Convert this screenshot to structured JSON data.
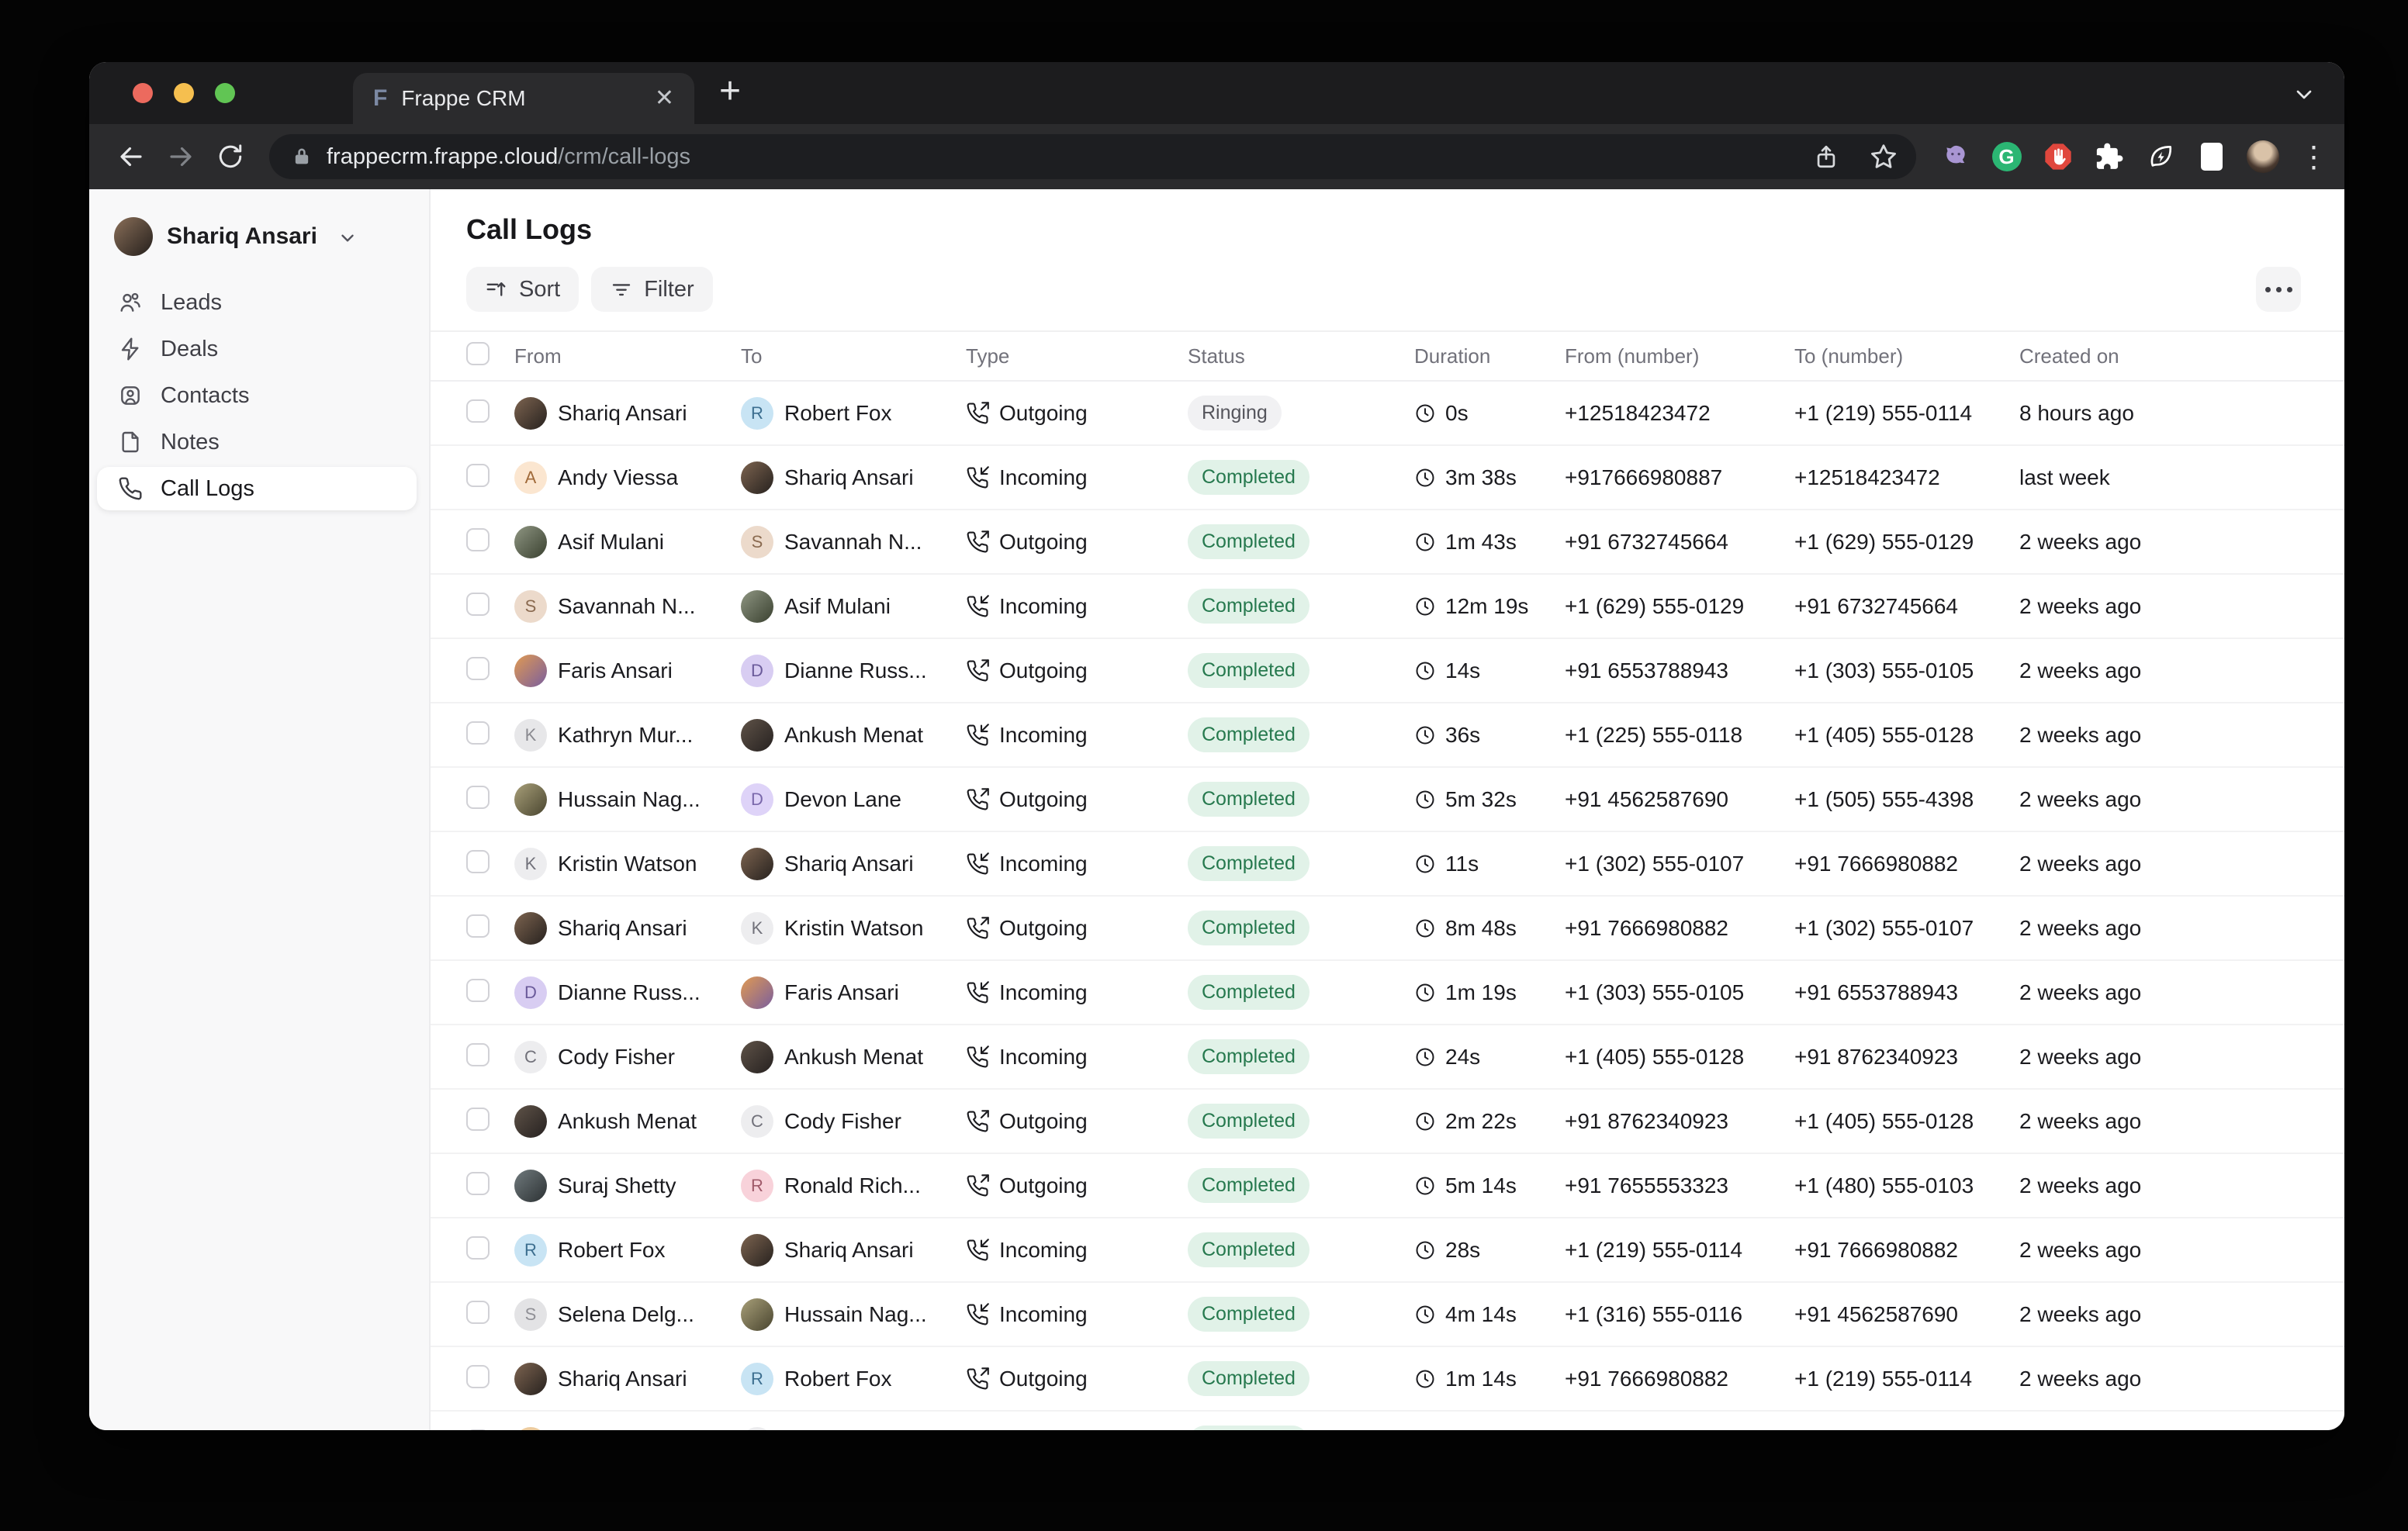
{
  "browser": {
    "tab_title": "Frappe CRM",
    "favicon_letter": "F",
    "close_glyph": "✕",
    "new_tab_glyph": "+",
    "url_domain": "frappecrm.frappe.cloud",
    "url_path": "/crm/call-logs",
    "grammarly_letter": "G",
    "menu_dots_glyph": "⋮",
    "traffic_lights": [
      "#ec6a5e",
      "#f5bf4f",
      "#61c554"
    ],
    "icon_names": [
      "back-arrow-icon",
      "forward-arrow-icon",
      "reload-icon",
      "padlock-icon",
      "share-icon",
      "bookmark-star-icon",
      "octocat-extension-icon",
      "grammarly-extension-icon",
      "adblock-extension-icon",
      "extensions-puzzle-icon",
      "leaf-bolt-extension-icon",
      "side-panel-icon",
      "profile-avatar",
      "menu-dots-icon",
      "tab-strip-chevron-icon"
    ]
  },
  "sidebar": {
    "user": {
      "name": "Shariq Ansari"
    },
    "items": [
      {
        "label": "Leads",
        "icon": "users-icon",
        "active": false
      },
      {
        "label": "Deals",
        "icon": "zap-icon",
        "active": false
      },
      {
        "label": "Contacts",
        "icon": "contact-card-icon",
        "active": false
      },
      {
        "label": "Notes",
        "icon": "note-file-icon",
        "active": false
      },
      {
        "label": "Call Logs",
        "icon": "phone-icon",
        "active": true
      }
    ]
  },
  "main": {
    "title": "Call Logs",
    "controls": {
      "sort": "Sort",
      "filter": "Filter"
    },
    "table": {
      "headers": [
        "From",
        "To",
        "Type",
        "Status",
        "Duration",
        "From (number)",
        "To (number)",
        "Created on"
      ],
      "rows": [
        {
          "from": {
            "name": "Shariq Ansari",
            "avatar": {
              "kind": "photo",
              "colors": [
                "#7d6450",
                "#26211e"
              ]
            }
          },
          "to": {
            "name": "Robert Fox",
            "avatar": {
              "kind": "memoji",
              "bg": "#c8e4f4",
              "fg": "#3c6e8f",
              "initial": "R"
            }
          },
          "type": "Outgoing",
          "status": "Ringing",
          "duration": "0s",
          "from_number": "+12518423472",
          "to_number": "+1 (219) 555-0114",
          "created": "8 hours ago"
        },
        {
          "from": {
            "name": "Andy Viessa",
            "avatar": {
              "kind": "memoji",
              "bg": "#fbe6d0",
              "fg": "#a06a3a",
              "initial": "A"
            }
          },
          "to": {
            "name": "Shariq Ansari",
            "avatar": {
              "kind": "photo",
              "colors": [
                "#7d6450",
                "#26211e"
              ]
            }
          },
          "type": "Incoming",
          "status": "Completed",
          "duration": "3m 38s",
          "from_number": "+917666980887",
          "to_number": "+12518423472",
          "created": "last week"
        },
        {
          "from": {
            "name": "Asif Mulani",
            "avatar": {
              "kind": "photo",
              "colors": [
                "#8f9683",
                "#39402f"
              ]
            }
          },
          "to": {
            "name": "Savannah N...",
            "avatar": {
              "kind": "memoji",
              "bg": "#ecdacb",
              "fg": "#8a6a50",
              "initial": "S"
            }
          },
          "type": "Outgoing",
          "status": "Completed",
          "duration": "1m 43s",
          "from_number": "+91 6732745664",
          "to_number": "+1 (629) 555-0129",
          "created": "2 weeks ago"
        },
        {
          "from": {
            "name": "Savannah N...",
            "avatar": {
              "kind": "memoji",
              "bg": "#ecdacb",
              "fg": "#8a6a50",
              "initial": "S"
            }
          },
          "to": {
            "name": "Asif Mulani",
            "avatar": {
              "kind": "photo",
              "colors": [
                "#8f9683",
                "#39402f"
              ]
            }
          },
          "type": "Incoming",
          "status": "Completed",
          "duration": "12m 19s",
          "from_number": "+1 (629) 555-0129",
          "to_number": "+91 6732745664",
          "created": "2 weeks ago"
        },
        {
          "from": {
            "name": "Faris Ansari",
            "avatar": {
              "kind": "photo",
              "colors": [
                "#e09a52",
                "#7a5e9e"
              ]
            }
          },
          "to": {
            "name": "Dianne Russ...",
            "avatar": {
              "kind": "memoji",
              "bg": "#d8cdf2",
              "fg": "#6a5a9a",
              "initial": "D"
            }
          },
          "type": "Outgoing",
          "status": "Completed",
          "duration": "14s",
          "from_number": "+91 6553788943",
          "to_number": "+1 (303) 555-0105",
          "created": "2 weeks ago"
        },
        {
          "from": {
            "name": "Kathryn Mur...",
            "avatar": {
              "kind": "memoji",
              "bg": "#e7e7e9",
              "fg": "#8a8a90",
              "initial": "K"
            }
          },
          "to": {
            "name": "Ankush Menat",
            "avatar": {
              "kind": "photo",
              "colors": [
                "#5f5348",
                "#262120"
              ]
            }
          },
          "type": "Incoming",
          "status": "Completed",
          "duration": "36s",
          "from_number": "+1 (225) 555-0118",
          "to_number": "+1 (405) 555-0128",
          "created": "2 weeks ago"
        },
        {
          "from": {
            "name": "Hussain Nag...",
            "avatar": {
              "kind": "photo",
              "colors": [
                "#a89f79",
                "#49452f"
              ]
            }
          },
          "to": {
            "name": "Devon Lane",
            "avatar": {
              "kind": "memoji",
              "bg": "#ded3f8",
              "fg": "#7a68ab",
              "initial": "D"
            }
          },
          "type": "Outgoing",
          "status": "Completed",
          "duration": "5m 32s",
          "from_number": "+91 4562587690",
          "to_number": "+1 (505) 555-4398",
          "created": "2 weeks ago"
        },
        {
          "from": {
            "name": "Kristin Watson",
            "avatar": {
              "kind": "letter",
              "bg": "#ededef",
              "fg": "#71717a",
              "initial": "K"
            }
          },
          "to": {
            "name": "Shariq Ansari",
            "avatar": {
              "kind": "photo",
              "colors": [
                "#7d6450",
                "#26211e"
              ]
            }
          },
          "type": "Incoming",
          "status": "Completed",
          "duration": "11s",
          "from_number": "+1 (302) 555-0107",
          "to_number": "+91 7666980882",
          "created": "2 weeks ago"
        },
        {
          "from": {
            "name": "Shariq Ansari",
            "avatar": {
              "kind": "photo",
              "colors": [
                "#7d6450",
                "#26211e"
              ]
            }
          },
          "to": {
            "name": "Kristin Watson",
            "avatar": {
              "kind": "letter",
              "bg": "#ededef",
              "fg": "#71717a",
              "initial": "K"
            }
          },
          "type": "Outgoing",
          "status": "Completed",
          "duration": "8m 48s",
          "from_number": "+91 7666980882",
          "to_number": "+1 (302) 555-0107",
          "created": "2 weeks ago"
        },
        {
          "from": {
            "name": "Dianne Russ...",
            "avatar": {
              "kind": "memoji",
              "bg": "#d8cdf2",
              "fg": "#6a5a9a",
              "initial": "D"
            }
          },
          "to": {
            "name": "Faris Ansari",
            "avatar": {
              "kind": "photo",
              "colors": [
                "#e09a52",
                "#7a5e9e"
              ]
            }
          },
          "type": "Incoming",
          "status": "Completed",
          "duration": "1m 19s",
          "from_number": "+1 (303) 555-0105",
          "to_number": "+91 6553788943",
          "created": "2 weeks ago"
        },
        {
          "from": {
            "name": "Cody Fisher",
            "avatar": {
              "kind": "letter",
              "bg": "#ededef",
              "fg": "#71717a",
              "initial": "C"
            }
          },
          "to": {
            "name": "Ankush Menat",
            "avatar": {
              "kind": "photo",
              "colors": [
                "#5f5348",
                "#262120"
              ]
            }
          },
          "type": "Incoming",
          "status": "Completed",
          "duration": "24s",
          "from_number": "+1 (405) 555-0128",
          "to_number": "+91 8762340923",
          "created": "2 weeks ago"
        },
        {
          "from": {
            "name": "Ankush Menat",
            "avatar": {
              "kind": "photo",
              "colors": [
                "#5f5348",
                "#262120"
              ]
            }
          },
          "to": {
            "name": "Cody Fisher",
            "avatar": {
              "kind": "letter",
              "bg": "#ededef",
              "fg": "#71717a",
              "initial": "C"
            }
          },
          "type": "Outgoing",
          "status": "Completed",
          "duration": "2m 22s",
          "from_number": "+91 8762340923",
          "to_number": "+1 (405) 555-0128",
          "created": "2 weeks ago"
        },
        {
          "from": {
            "name": "Suraj Shetty",
            "avatar": {
              "kind": "photo",
              "colors": [
                "#707a7d",
                "#2c3133"
              ]
            }
          },
          "to": {
            "name": "Ronald Rich...",
            "avatar": {
              "kind": "memoji",
              "bg": "#f8d2da",
              "fg": "#a05a6a",
              "initial": "R"
            }
          },
          "type": "Outgoing",
          "status": "Completed",
          "duration": "5m 14s",
          "from_number": "+91 7655553323",
          "to_number": "+1 (480) 555-0103",
          "created": "2 weeks ago"
        },
        {
          "from": {
            "name": "Robert Fox",
            "avatar": {
              "kind": "memoji",
              "bg": "#c8e4f4",
              "fg": "#3c6e8f",
              "initial": "R"
            }
          },
          "to": {
            "name": "Shariq Ansari",
            "avatar": {
              "kind": "photo",
              "colors": [
                "#7d6450",
                "#26211e"
              ]
            }
          },
          "type": "Incoming",
          "status": "Completed",
          "duration": "28s",
          "from_number": "+1 (219) 555-0114",
          "to_number": "+91 7666980882",
          "created": "2 weeks ago"
        },
        {
          "from": {
            "name": "Selena Delg...",
            "avatar": {
              "kind": "memoji",
              "bg": "#e3e3e5",
              "fg": "#909096",
              "initial": "S"
            }
          },
          "to": {
            "name": "Hussain Nag...",
            "avatar": {
              "kind": "photo",
              "colors": [
                "#a89f79",
                "#49452f"
              ]
            }
          },
          "type": "Incoming",
          "status": "Completed",
          "duration": "4m 14s",
          "from_number": "+1 (316) 555-0116",
          "to_number": "+91 4562587690",
          "created": "2 weeks ago"
        },
        {
          "from": {
            "name": "Shariq Ansari",
            "avatar": {
              "kind": "photo",
              "colors": [
                "#7d6450",
                "#26211e"
              ]
            }
          },
          "to": {
            "name": "Robert Fox",
            "avatar": {
              "kind": "memoji",
              "bg": "#c8e4f4",
              "fg": "#3c6e8f",
              "initial": "R"
            }
          },
          "type": "Outgoing",
          "status": "Completed",
          "duration": "1m 14s",
          "from_number": "+91 7666980882",
          "to_number": "+1 (219) 555-0114",
          "created": "2 weeks ago"
        },
        {
          "from": {
            "name": "",
            "avatar": {
              "kind": "memoji",
              "bg": "#eccb9e",
              "fg": "#a1773f",
              "initial": ""
            }
          },
          "to": {
            "name": "",
            "avatar": {
              "kind": "letter",
              "bg": "#ebebed",
              "fg": "#9a9aa0",
              "initial": ""
            }
          },
          "type": "",
          "status": "Completed",
          "duration": "",
          "from_number": "",
          "to_number": "",
          "created": ""
        }
      ]
    }
  },
  "status_styles": {
    "Completed": {
      "bg": "#e1f2e8",
      "fg": "#26794e"
    },
    "Ringing": {
      "bg": "#f1f1f3",
      "fg": "#55555c"
    }
  }
}
